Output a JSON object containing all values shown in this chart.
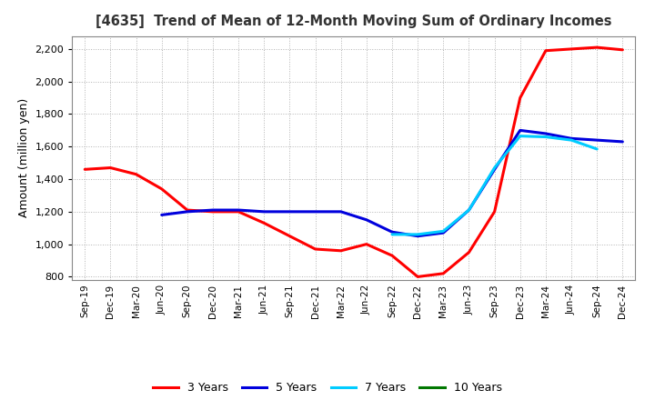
{
  "title": "[4635]  Trend of Mean of 12-Month Moving Sum of Ordinary Incomes",
  "ylabel": "Amount (million yen)",
  "xlabels": [
    "Sep-19",
    "Dec-19",
    "Mar-20",
    "Jun-20",
    "Sep-20",
    "Dec-20",
    "Mar-21",
    "Jun-21",
    "Sep-21",
    "Dec-21",
    "Mar-22",
    "Jun-22",
    "Sep-22",
    "Dec-22",
    "Mar-23",
    "Jun-23",
    "Sep-23",
    "Dec-23",
    "Mar-24",
    "Jun-24",
    "Sep-24",
    "Dec-24"
  ],
  "series": {
    "3 Years": {
      "color": "#FF0000",
      "values": [
        1460,
        1470,
        1430,
        1340,
        1210,
        1200,
        1200,
        1130,
        1050,
        970,
        960,
        1000,
        930,
        800,
        820,
        950,
        1200,
        1900,
        2190,
        2200,
        2210,
        2195
      ]
    },
    "5 Years": {
      "color": "#0000DD",
      "values": [
        null,
        null,
        null,
        1180,
        1200,
        1210,
        1210,
        1200,
        1200,
        1200,
        1200,
        1150,
        1075,
        1050,
        1070,
        1210,
        1460,
        1700,
        1680,
        1650,
        1640,
        1630
      ]
    },
    "7 Years": {
      "color": "#00CCFF",
      "values": [
        null,
        null,
        null,
        null,
        null,
        null,
        null,
        null,
        null,
        null,
        null,
        null,
        1060,
        1060,
        1080,
        1210,
        1470,
        1665,
        1660,
        1640,
        1585,
        null
      ]
    },
    "10 Years": {
      "color": "#007700",
      "values": [
        null,
        null,
        null,
        null,
        null,
        null,
        null,
        null,
        null,
        null,
        null,
        null,
        null,
        null,
        null,
        null,
        null,
        null,
        null,
        null,
        null,
        null
      ]
    }
  },
  "ylim": [
    780,
    2280
  ],
  "yticks": [
    800,
    1000,
    1200,
    1400,
    1600,
    1800,
    2000,
    2200
  ],
  "bg_color": "#FFFFFF",
  "grid_color": "#AAAAAA"
}
